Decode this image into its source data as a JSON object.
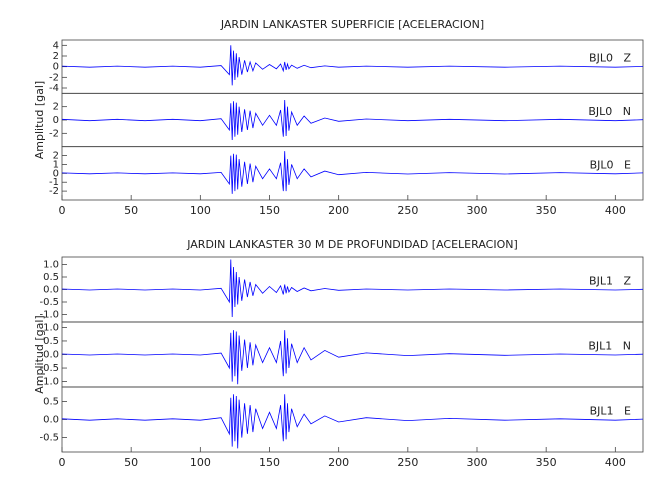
{
  "chart_data": [
    {
      "type": "line",
      "title": "JARDIN LANKASTER SUPERFICIE [ACELERACION]",
      "ylabel": "Amplitud [gal]",
      "xlim": [
        0,
        420
      ],
      "xticks": [
        0,
        50,
        100,
        150,
        200,
        250,
        300,
        350,
        400
      ],
      "x": [
        0,
        20,
        40,
        60,
        80,
        100,
        115,
        121,
        122,
        123,
        124,
        125,
        126,
        127,
        128,
        130,
        132,
        134,
        136,
        138,
        140,
        145,
        150,
        155,
        158,
        160,
        161,
        162,
        163,
        164,
        166,
        170,
        175,
        180,
        190,
        200,
        220,
        250,
        280,
        320,
        360,
        400,
        420
      ],
      "panels": [
        {
          "name": "BJL0   Z",
          "color": "#0000ff",
          "ylim": [
            -5,
            5
          ],
          "yticks": [
            -4,
            -2,
            0,
            2,
            4
          ],
          "values": [
            0.1,
            -0.1,
            0.1,
            -0.1,
            0.1,
            -0.1,
            0.2,
            -1.5,
            4,
            -3.5,
            3,
            -2.5,
            2.5,
            -2,
            1.8,
            -1.5,
            1.2,
            -1,
            0.9,
            -0.8,
            0.7,
            -0.5,
            0.4,
            -0.4,
            0.5,
            -0.8,
            0.9,
            -0.6,
            0.5,
            -0.4,
            0.3,
            -0.3,
            0.25,
            -0.2,
            0.15,
            -0.1,
            0.1,
            -0.1,
            0.1,
            -0.1,
            0.1,
            -0.1,
            0.05
          ]
        },
        {
          "name": "BJL0   N",
          "color": "#0000ff",
          "ylim": [
            -4,
            4
          ],
          "yticks": [
            -2,
            0,
            2
          ],
          "values": [
            0.1,
            -0.1,
            0.1,
            -0.1,
            0.1,
            -0.1,
            0.2,
            -1.5,
            2.5,
            -3,
            2.8,
            -2.5,
            2.6,
            -2.2,
            2,
            -1.8,
            1.6,
            -1.5,
            1.4,
            -1.2,
            1,
            -0.8,
            0.7,
            -0.8,
            1.5,
            -2.5,
            3,
            -2.4,
            2,
            -1.6,
            1.2,
            -0.8,
            0.6,
            -0.5,
            0.3,
            -0.2,
            0.15,
            -0.1,
            0.1,
            -0.1,
            0.1,
            -0.1,
            0.05
          ]
        },
        {
          "name": "BJL0   E",
          "color": "#0000ff",
          "ylim": [
            -3,
            3
          ],
          "yticks": [
            -2,
            -1,
            0,
            1,
            2
          ],
          "values": [
            0.05,
            -0.05,
            0.05,
            -0.05,
            0.05,
            -0.05,
            0.1,
            -1.2,
            2,
            -2.3,
            2.2,
            -2,
            2.1,
            -1.8,
            1.6,
            -1.5,
            1.3,
            -1.2,
            1.1,
            -1,
            0.8,
            -0.6,
            0.5,
            -0.6,
            1.2,
            -2,
            2.5,
            -2,
            1.6,
            -1.3,
            1,
            -0.6,
            0.5,
            -0.4,
            0.25,
            -0.15,
            0.1,
            -0.08,
            0.08,
            -0.08,
            0.08,
            -0.05,
            0.05
          ]
        }
      ]
    },
    {
      "type": "line",
      "title": "JARDIN LANKASTER 30 M DE PROFUNDIDAD [ACELERACION]",
      "ylabel": "Amplitud [gal]",
      "xlim": [
        0,
        420
      ],
      "xticks": [
        0,
        50,
        100,
        150,
        200,
        250,
        300,
        350,
        400
      ],
      "x": [
        0,
        20,
        40,
        60,
        80,
        100,
        115,
        121,
        122,
        123,
        124,
        125,
        126,
        127,
        128,
        130,
        132,
        134,
        136,
        138,
        140,
        145,
        150,
        155,
        158,
        160,
        161,
        162,
        163,
        164,
        166,
        170,
        175,
        180,
        190,
        200,
        220,
        250,
        280,
        320,
        360,
        400,
        420
      ],
      "panels": [
        {
          "name": "BJL1   Z",
          "color": "#0000ff",
          "ylim": [
            -1.3,
            1.3
          ],
          "yticks": [
            {
              "value": -1,
              "label": "-1.0"
            },
            {
              "value": -0.5,
              "label": "-0.5"
            },
            {
              "value": 0,
              "label": "0.0"
            },
            {
              "value": 0.5,
              "label": "0.5"
            },
            {
              "value": 1,
              "label": "1.0"
            }
          ],
          "values": [
            0.02,
            -0.02,
            0.02,
            -0.02,
            0.02,
            -0.02,
            0.05,
            -0.5,
            1.2,
            -1.1,
            0.9,
            -0.7,
            0.7,
            -0.6,
            0.5,
            -0.45,
            0.4,
            -0.3,
            0.3,
            -0.25,
            0.2,
            -0.15,
            0.12,
            -0.12,
            0.15,
            -0.2,
            0.2,
            -0.15,
            0.12,
            -0.1,
            0.08,
            -0.08,
            0.06,
            -0.05,
            0.04,
            -0.03,
            0.02,
            -0.02,
            0.02,
            -0.02,
            0.02,
            -0.02,
            0.01
          ]
        },
        {
          "name": "BJL1   N",
          "color": "#0000ff",
          "ylim": [
            -1.2,
            1.2
          ],
          "yticks": [
            {
              "value": -1,
              "label": "-1.0"
            },
            {
              "value": -0.5,
              "label": "-0.5"
            },
            {
              "value": 0,
              "label": "0.0"
            },
            {
              "value": 0.5,
              "label": "0.5"
            },
            {
              "value": 1,
              "label": "1.0"
            }
          ],
          "values": [
            0.02,
            -0.02,
            0.02,
            -0.02,
            0.02,
            -0.02,
            0.05,
            -0.5,
            0.8,
            -1,
            0.9,
            -0.8,
            0.85,
            -1.1,
            0.7,
            -0.6,
            0.55,
            -0.5,
            0.45,
            -0.4,
            0.35,
            -0.3,
            0.25,
            -0.3,
            0.5,
            -0.8,
            0.9,
            -0.7,
            0.6,
            -0.5,
            0.4,
            -0.3,
            0.25,
            -0.2,
            0.15,
            -0.1,
            0.06,
            -0.04,
            0.03,
            -0.03,
            0.02,
            -0.02,
            0.01
          ]
        },
        {
          "name": "BJL1   E",
          "color": "#0000ff",
          "ylim": [
            -0.9,
            0.9
          ],
          "yticks": [
            {
              "value": -0.5,
              "label": "-0.5"
            },
            {
              "value": 0,
              "label": "0.0"
            },
            {
              "value": 0.5,
              "label": "0.5"
            }
          ],
          "values": [
            0.02,
            -0.02,
            0.02,
            -0.02,
            0.02,
            -0.02,
            0.05,
            -0.4,
            0.6,
            -0.75,
            0.7,
            -0.6,
            0.65,
            -0.8,
            0.55,
            -0.5,
            0.45,
            -0.4,
            0.4,
            -0.35,
            0.3,
            -0.25,
            0.2,
            -0.25,
            0.4,
            -0.6,
            0.7,
            -0.55,
            0.45,
            -0.35,
            0.3,
            -0.2,
            0.15,
            -0.12,
            0.1,
            -0.07,
            0.05,
            -0.03,
            0.03,
            -0.02,
            0.02,
            -0.02,
            0.01
          ]
        }
      ]
    }
  ]
}
